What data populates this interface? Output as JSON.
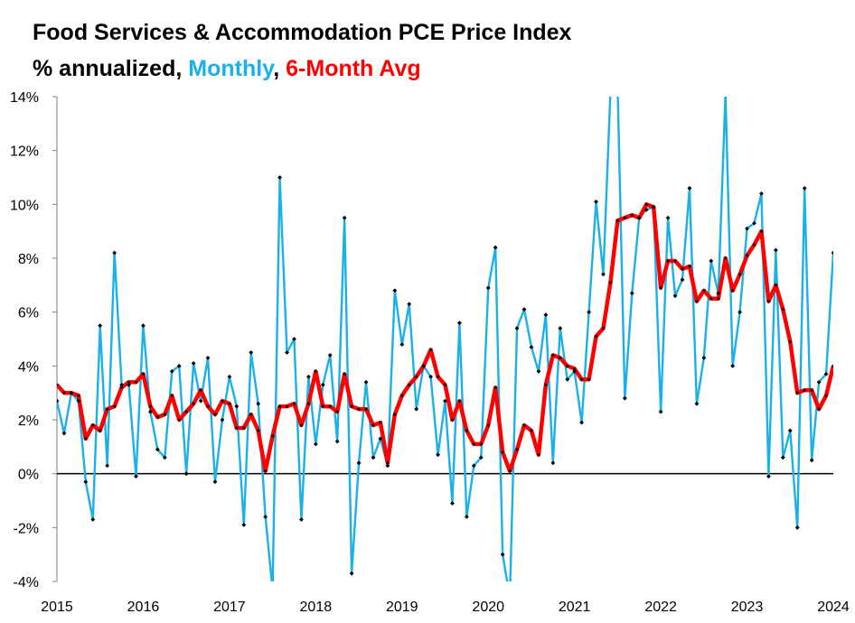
{
  "chart_data": {
    "type": "line",
    "title": "Food Services & Accommodation PCE Price Index",
    "subtitle": {
      "prefix": "% annualized, ",
      "monthly_label": "Monthly",
      "separator": ", ",
      "avg_label": "6-Month Avg"
    },
    "colors": {
      "monthly": "#1ab0e8",
      "avg": "#ff0000",
      "marker": "#000000",
      "zero_line": "#000000",
      "axis": "#7f7f7f"
    },
    "ylim": [
      -4,
      14
    ],
    "xlim": [
      2015,
      2024
    ],
    "y_ticks": [
      {
        "value": -4,
        "label": "-4%"
      },
      {
        "value": -2,
        "label": "-2%"
      },
      {
        "value": 0,
        "label": "0%"
      },
      {
        "value": 2,
        "label": "2%"
      },
      {
        "value": 4,
        "label": "4%"
      },
      {
        "value": 6,
        "label": "6%"
      },
      {
        "value": 8,
        "label": "8%"
      },
      {
        "value": 10,
        "label": "10%"
      },
      {
        "value": 12,
        "label": "12%"
      },
      {
        "value": 14,
        "label": "14%"
      }
    ],
    "x_ticks": [
      {
        "value": 2015,
        "label": "2015"
      },
      {
        "value": 2016,
        "label": "2016"
      },
      {
        "value": 2017,
        "label": "2017"
      },
      {
        "value": 2018,
        "label": "2018"
      },
      {
        "value": 2019,
        "label": "2019"
      },
      {
        "value": 2020,
        "label": "2020"
      },
      {
        "value": 2021,
        "label": "2021"
      },
      {
        "value": 2022,
        "label": "2022"
      },
      {
        "value": 2023,
        "label": "2023"
      },
      {
        "value": 2024,
        "label": "2024"
      }
    ],
    "start_year": 2015,
    "series": [
      {
        "name": "Monthly",
        "values": [
          2.7,
          1.5,
          3.0,
          2.7,
          -0.3,
          -1.7,
          5.5,
          0.3,
          8.2,
          3.3,
          3.3,
          -0.1,
          5.5,
          2.3,
          0.9,
          0.6,
          3.8,
          4.0,
          0.0,
          4.1,
          2.7,
          4.3,
          -0.3,
          2.0,
          3.6,
          2.5,
          -1.9,
          4.5,
          2.6,
          -1.6,
          -4.3,
          11.0,
          4.5,
          5.0,
          -1.7,
          3.6,
          1.1,
          3.3,
          4.4,
          1.2,
          9.5,
          -3.7,
          0.4,
          3.4,
          0.6,
          1.3,
          0.3,
          6.8,
          4.8,
          6.3,
          2.4,
          4.0,
          3.6,
          0.7,
          2.7,
          -1.1,
          5.6,
          -1.6,
          0.3,
          0.6,
          6.9,
          8.4,
          -3.0,
          -4.6,
          5.4,
          6.1,
          4.7,
          3.8,
          5.9,
          0.4,
          5.4,
          3.5,
          3.8,
          1.9,
          6.0,
          10.1,
          7.4,
          14.2,
          14.3,
          2.8,
          6.7,
          9.5,
          9.8,
          9.9,
          2.3,
          9.5,
          6.6,
          7.2,
          10.6,
          2.6,
          4.3,
          7.9,
          6.7,
          14.1,
          4.0,
          6.0,
          9.1,
          9.3,
          10.4,
          -0.1,
          8.3,
          0.6,
          1.6,
          -2.0,
          10.6,
          0.5,
          3.4,
          3.7,
          8.2
        ]
      },
      {
        "name": "6-Month Avg",
        "values": [
          3.3,
          3.0,
          3.0,
          2.9,
          1.3,
          1.8,
          1.6,
          2.4,
          2.5,
          3.2,
          3.4,
          3.4,
          3.7,
          2.5,
          2.1,
          2.2,
          2.9,
          2.0,
          2.3,
          2.6,
          3.1,
          2.5,
          2.2,
          2.7,
          2.6,
          1.7,
          1.7,
          2.2,
          1.6,
          0.1,
          1.4,
          2.5,
          2.5,
          2.6,
          1.8,
          2.6,
          3.8,
          2.5,
          2.5,
          2.3,
          3.7,
          2.5,
          2.4,
          2.4,
          1.8,
          1.9,
          0.4,
          2.2,
          2.9,
          3.3,
          3.6,
          4.0,
          4.6,
          3.6,
          3.3,
          2.0,
          2.7,
          1.6,
          1.1,
          1.1,
          1.8,
          3.2,
          0.8,
          0.1,
          0.9,
          1.8,
          1.6,
          0.7,
          3.3,
          4.4,
          4.3,
          4.0,
          3.9,
          3.5,
          3.5,
          5.1,
          5.4,
          7.1,
          9.4,
          9.5,
          9.6,
          9.5,
          10.0,
          9.9,
          6.9,
          7.9,
          7.9,
          7.6,
          7.7,
          6.4,
          6.8,
          6.5,
          6.5,
          8.0,
          6.8,
          7.4,
          8.1,
          8.5,
          9.0,
          6.4,
          7.0,
          6.1,
          4.9,
          3.0,
          3.1,
          3.1,
          2.4,
          2.9,
          4.0
        ]
      }
    ]
  }
}
